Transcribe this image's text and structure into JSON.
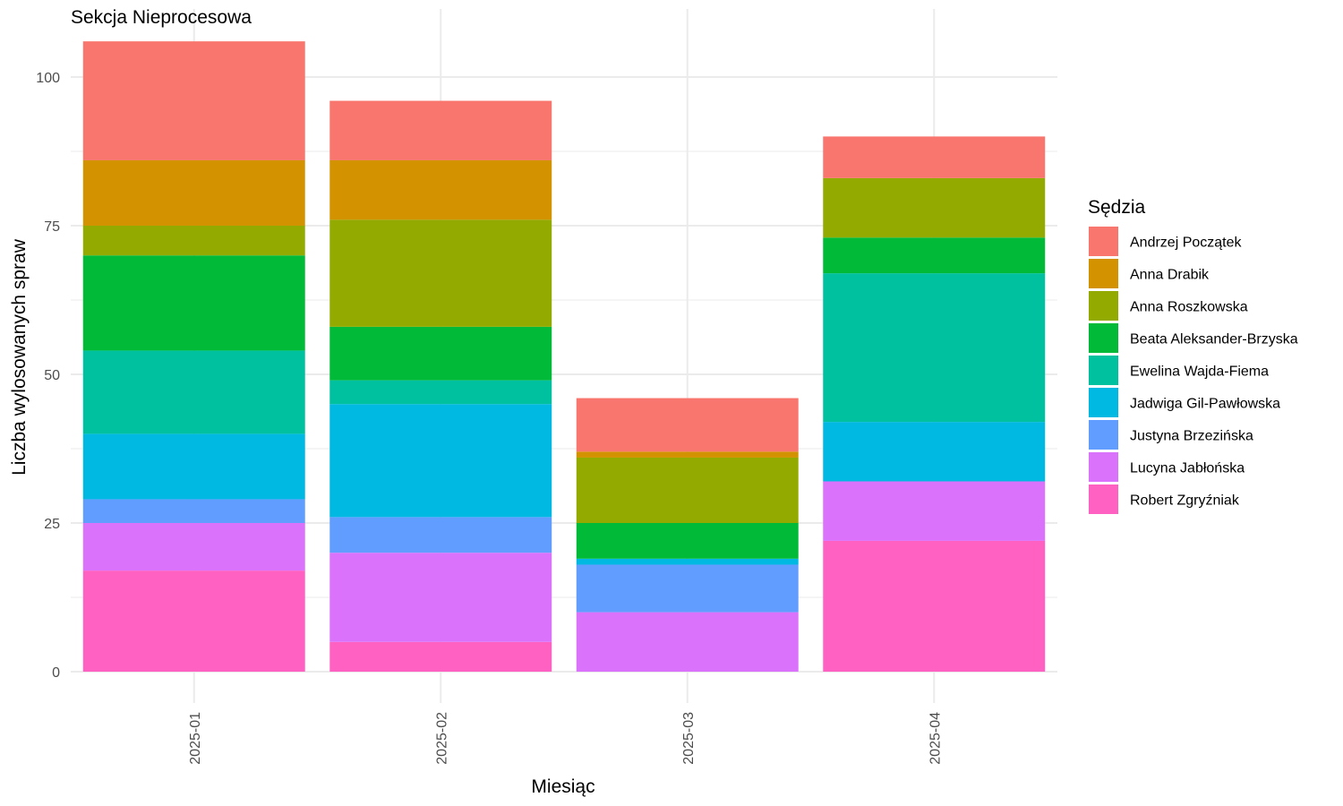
{
  "chart_data": {
    "type": "bar",
    "stacked": true,
    "title": "Sekcja Nieprocesowa",
    "xlabel": "Miesiąc",
    "ylabel": "Liczba wylosowanych spraw",
    "categories": [
      "2025-01",
      "2025-02",
      "2025-03",
      "2025-04"
    ],
    "ylim": [
      0,
      106
    ],
    "yticks": [
      0,
      25,
      50,
      75,
      100
    ],
    "grid": true,
    "legend_title": "Sędzia",
    "legend_position": "right",
    "series": [
      {
        "name": "Andrzej Początek",
        "color": "#F8766D",
        "values": [
          20,
          10,
          9,
          7
        ]
      },
      {
        "name": "Anna Drabik",
        "color": "#D39200",
        "values": [
          11,
          10,
          1,
          0
        ]
      },
      {
        "name": "Anna Roszkowska",
        "color": "#93AA00",
        "values": [
          5,
          18,
          11,
          10
        ]
      },
      {
        "name": "Beata Aleksander-Brzyska",
        "color": "#00BA38",
        "values": [
          16,
          9,
          6,
          6
        ]
      },
      {
        "name": "Ewelina Wajda-Fiema",
        "color": "#00C19F",
        "values": [
          14,
          4,
          0,
          25
        ]
      },
      {
        "name": "Jadwiga Gil-Pawłowska",
        "color": "#00B9E3",
        "values": [
          11,
          19,
          1,
          10
        ]
      },
      {
        "name": "Justyna Brzezińska",
        "color": "#619CFF",
        "values": [
          4,
          6,
          8,
          0
        ]
      },
      {
        "name": "Lucyna Jabłońska",
        "color": "#DB72FB",
        "values": [
          8,
          15,
          10,
          10
        ]
      },
      {
        "name": "Robert Zgryźniak",
        "color": "#FF61C3",
        "values": [
          17,
          5,
          0,
          22
        ]
      }
    ]
  }
}
